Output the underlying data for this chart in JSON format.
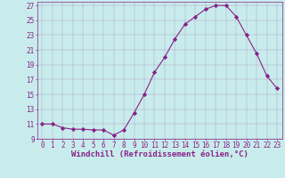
{
  "x": [
    0,
    1,
    2,
    3,
    4,
    5,
    6,
    7,
    8,
    9,
    10,
    11,
    12,
    13,
    14,
    15,
    16,
    17,
    18,
    19,
    20,
    21,
    22,
    23
  ],
  "y": [
    11,
    11,
    10.5,
    10.3,
    10.3,
    10.2,
    10.2,
    9.5,
    10.2,
    12.5,
    15,
    18,
    20,
    22.5,
    24.5,
    25.5,
    26.5,
    27,
    27,
    25.5,
    23,
    20.5,
    17.5,
    15.8
  ],
  "line_color": "#882288",
  "marker": "D",
  "marker_size": 2.2,
  "bg_color": "#c8ecec",
  "grid_color": "#9966aa",
  "xlabel": "Windchill (Refroidissement éolien,°C)",
  "xlabel_color": "#882288",
  "xlabel_fontsize": 6.5,
  "ylim_min": 9,
  "ylim_max": 27.5,
  "xlim_min": -0.5,
  "xlim_max": 23.5,
  "yticks": [
    9,
    11,
    13,
    15,
    17,
    19,
    21,
    23,
    25,
    27
  ],
  "ytick_labels": [
    "9",
    "11",
    "13",
    "15",
    "17",
    "19",
    "21",
    "23",
    "25",
    "27"
  ],
  "xticks": [
    0,
    1,
    2,
    3,
    4,
    5,
    6,
    7,
    8,
    9,
    10,
    11,
    12,
    13,
    14,
    15,
    16,
    17,
    18,
    19,
    20,
    21,
    22,
    23
  ],
  "xtick_labels": [
    "0",
    "1",
    "2",
    "3",
    "4",
    "5",
    "6",
    "7",
    "8",
    "9",
    "10",
    "11",
    "12",
    "13",
    "14",
    "15",
    "16",
    "17",
    "18",
    "19",
    "20",
    "21",
    "22",
    "23"
  ],
  "tick_color": "#882288",
  "tick_fontsize": 5.5,
  "spine_color": "#882288",
  "linewidth": 0.8,
  "grid_alpha": 0.6,
  "grid_linewidth": 0.3
}
